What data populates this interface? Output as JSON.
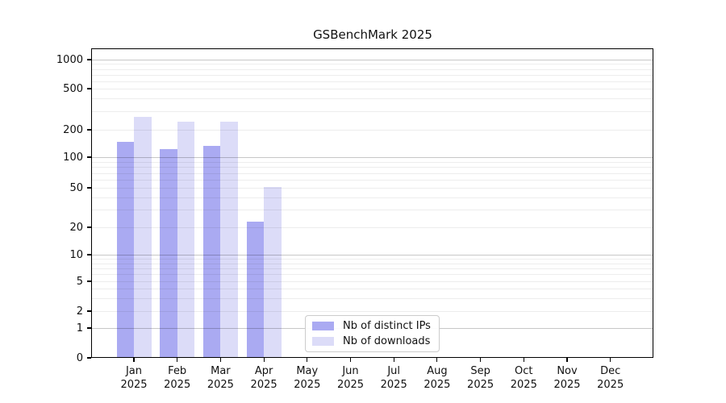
{
  "chart_data": {
    "type": "bar",
    "title": "GSBenchMark 2025",
    "yscale": "symlog",
    "grid": "horizontal major+minor, drawn over bars",
    "legend_position": "lower center",
    "categories": [
      "Jan 2025",
      "Feb 2025",
      "Mar 2025",
      "Apr 2025",
      "May 2025",
      "Jun 2025",
      "Jul 2025",
      "Aug 2025",
      "Sep 2025",
      "Oct 2025",
      "Nov 2025",
      "Dec 2025"
    ],
    "series": [
      {
        "name": "Nb of distinct IPs",
        "color": "#aaaaf2",
        "values": [
          148,
          122,
          133,
          23,
          0,
          0,
          0,
          0,
          0,
          0,
          0,
          0
        ]
      },
      {
        "name": "Nb of downloads",
        "color": "#dcdcf8",
        "values": [
          265,
          240,
          238,
          51,
          0,
          0,
          0,
          0,
          0,
          0,
          0,
          0
        ]
      }
    ],
    "y_ticks": [
      0,
      1,
      2,
      5,
      10,
      20,
      50,
      100,
      200,
      500,
      1000
    ],
    "ylim": [
      0,
      1300
    ],
    "xlabel": "",
    "ylabel": ""
  },
  "legend": {
    "items": [
      {
        "label": "Nb of distinct IPs",
        "color": "#aaaaf2"
      },
      {
        "label": "Nb of downloads",
        "color": "#dcdcf8"
      }
    ]
  }
}
